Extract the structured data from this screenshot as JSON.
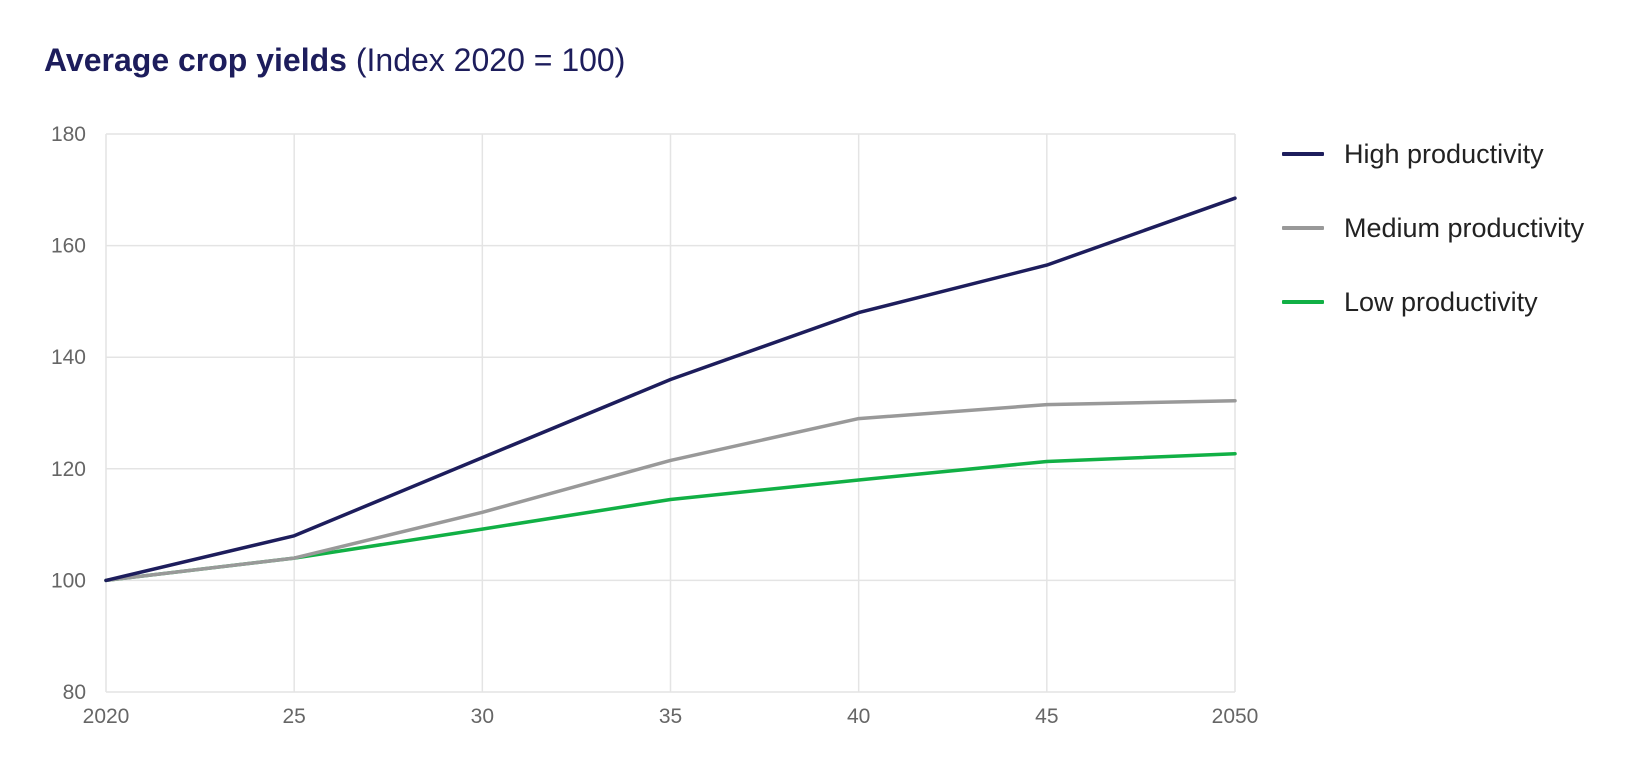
{
  "chart_data": {
    "type": "line",
    "title": "Average crop yields",
    "subtitle": "(Index 2020 = 100)",
    "x": [
      2020,
      2025,
      2030,
      2035,
      2040,
      2045,
      2050
    ],
    "x_tick_labels": [
      "2020",
      "25",
      "30",
      "35",
      "40",
      "45",
      "2050"
    ],
    "y_ticks": [
      80,
      100,
      120,
      140,
      160,
      180
    ],
    "ylim": [
      80,
      180
    ],
    "xlim": [
      2020,
      2050
    ],
    "grid": true,
    "legend_position": "right",
    "series": [
      {
        "name": "High productivity",
        "color": "#1d1d5c",
        "values": [
          100,
          108,
          122,
          136,
          148,
          156.5,
          168.5
        ]
      },
      {
        "name": "Medium productivity",
        "color": "#999999",
        "values": [
          100,
          104,
          112.2,
          121.5,
          129,
          131.5,
          132.2
        ]
      },
      {
        "name": "Low productivity",
        "color": "#11b045",
        "values": [
          100,
          104,
          109.2,
          114.5,
          118,
          121.3,
          122.7
        ]
      }
    ]
  }
}
